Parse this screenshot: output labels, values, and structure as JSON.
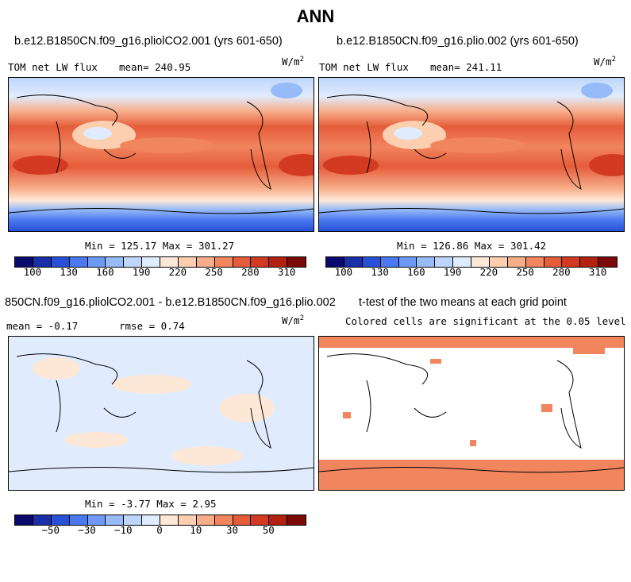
{
  "title": "ANN",
  "panel1": {
    "case_title": "b.e12.B1850CN.f09_g16.pliolCO2.001 (yrs 601-650)",
    "variable": "TOM net LW flux",
    "mean_label": "mean= 240.95",
    "units": "W/m",
    "units_exp": "2",
    "minmax": "Min = 125.17 Max = 301.27"
  },
  "panel2": {
    "case_title": "b.e12.B1850CN.f09_g16.plio.002 (yrs 601-650)",
    "variable": "TOM net LW flux",
    "mean_label": "mean= 241.11",
    "units": "W/m",
    "units_exp": "2",
    "minmax": "Min = 126.86 Max = 301.42"
  },
  "panel3": {
    "case_title": "850CN.f09_g16.pliolCO2.001 - b.e12.B1850CN.f09_g16.plio.002",
    "mean_label": "mean =  -0.17",
    "rmse_label": "rmse =   0.74",
    "units": "W/m",
    "units_exp": "2",
    "minmax": "Min =  -3.77 Max =   2.95"
  },
  "panel4": {
    "case_title": "t-test of the two means at each grid point",
    "subtitle": "Colored cells are significant at the 0.05 level"
  },
  "colorbar_abs": {
    "colors": [
      "#0a0a6e",
      "#1a2fa8",
      "#2850d8",
      "#4a78ee",
      "#6e9af5",
      "#97bbf8",
      "#bed6fb",
      "#e0ebfd",
      "#fde8d8",
      "#fbcfb0",
      "#f7ad88",
      "#f1855e",
      "#e55c3a",
      "#d23a22",
      "#b3210f",
      "#7d0a0a"
    ],
    "ticks": [
      "100",
      "130",
      "160",
      "190",
      "220",
      "250",
      "280",
      "310"
    ]
  },
  "colorbar_diff": {
    "colors": [
      "#0a0a6e",
      "#1a2fa8",
      "#2850d8",
      "#4a78ee",
      "#6e9af5",
      "#97bbf8",
      "#bed6fb",
      "#e0ebfd",
      "#fde8d8",
      "#fbcfb0",
      "#f7ad88",
      "#f1855e",
      "#e55c3a",
      "#d23a22",
      "#b3210f",
      "#7d0a0a"
    ],
    "ticks": [
      "−50",
      "−30",
      "−10",
      "0",
      "10",
      "30",
      "50"
    ]
  }
}
